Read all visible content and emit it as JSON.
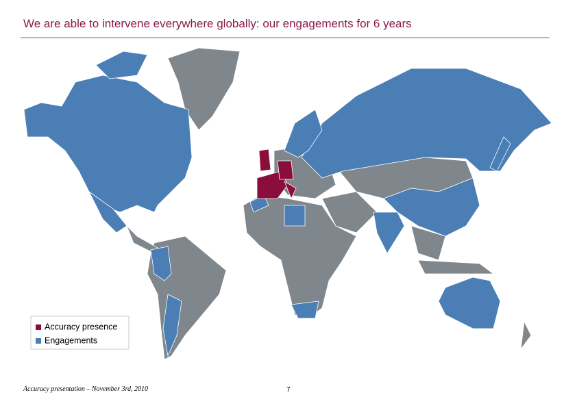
{
  "header": {
    "title": "We are able to intervene everywhere globally: our engagements for 6 years"
  },
  "legend": {
    "items": [
      {
        "label": "Accuracy presence",
        "color": "#8b0e3a"
      },
      {
        "label": "Engagements",
        "color": "#4a7eb5"
      }
    ]
  },
  "footer": {
    "text": "Accuracy presentation – November 3rd, 2010",
    "page": "7"
  }
}
